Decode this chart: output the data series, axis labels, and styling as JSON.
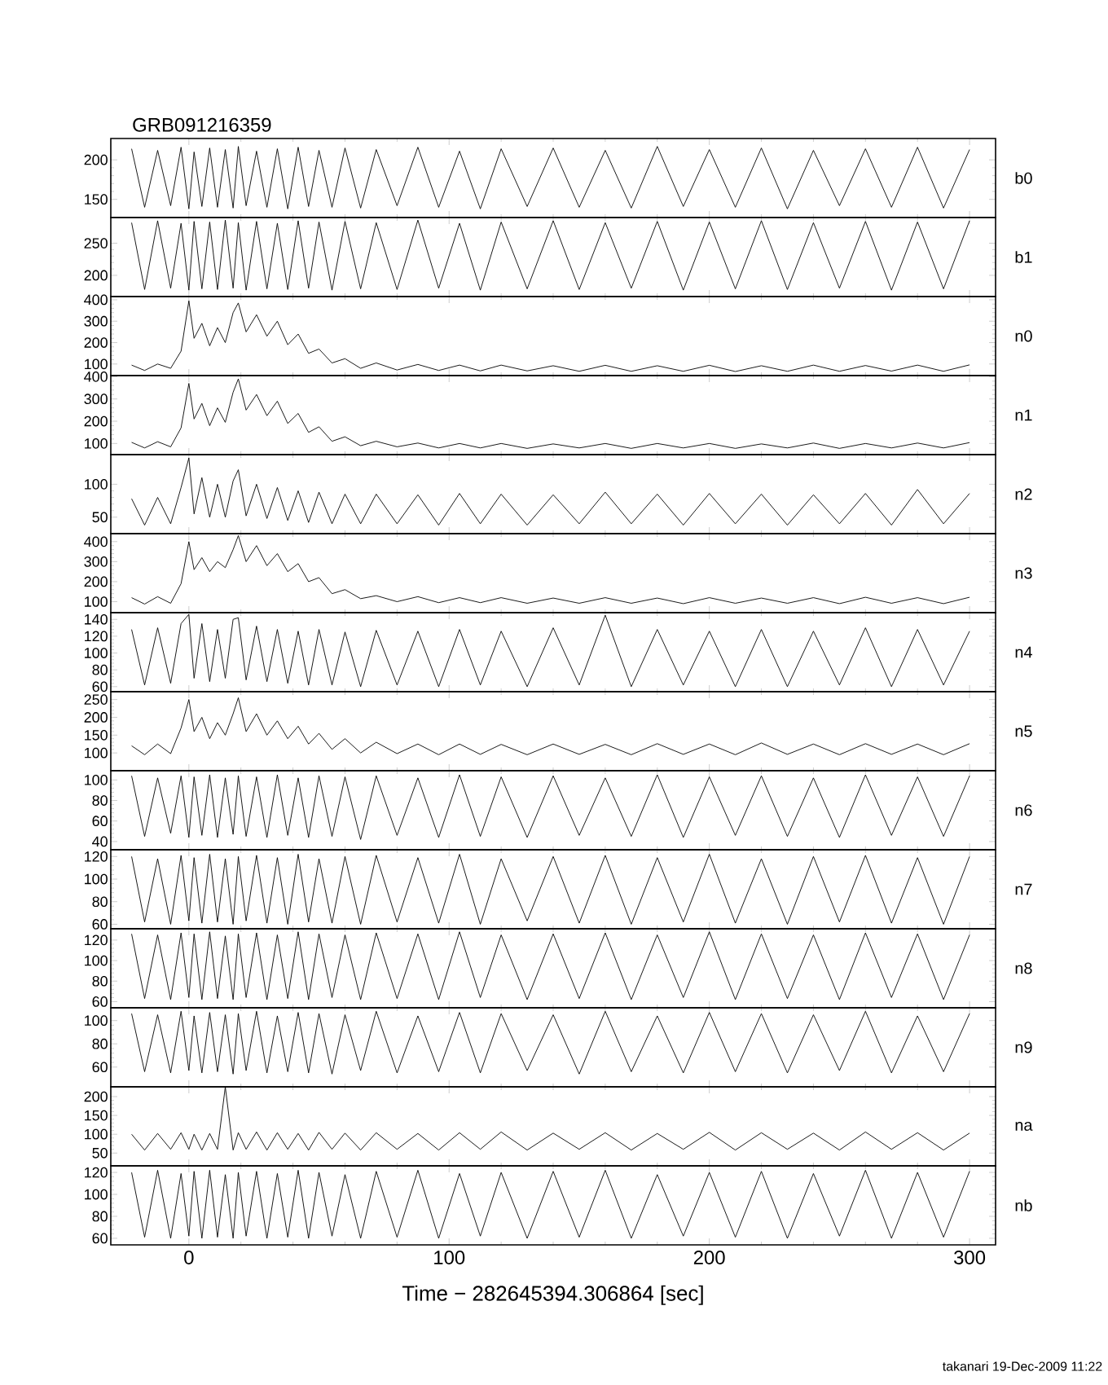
{
  "chart_data": [
    {
      "type": "line",
      "title": "GRB091216359",
      "tick_labels": "y",
      "xlim": [
        -30,
        310
      ],
      "xticks": [
        0,
        100,
        200,
        300
      ],
      "ylim": [
        127,
        227
      ],
      "yticks": [
        150,
        200
      ],
      "x": [
        -22,
        -17,
        -12,
        -7,
        -3,
        0,
        2,
        5,
        8,
        11,
        14,
        17,
        19,
        22,
        26,
        30,
        34,
        38,
        42,
        46,
        50,
        55,
        60,
        66,
        72,
        80,
        88,
        96,
        104,
        112,
        120,
        130,
        140,
        150,
        160,
        170,
        180,
        190,
        200,
        210,
        220,
        230,
        240,
        250,
        260,
        270,
        280,
        290,
        300
      ],
      "series": [
        {
          "name": "b0",
          "color": "#000000",
          "values": [
            214,
            140,
            212,
            142,
            216,
            138,
            210,
            141,
            215,
            140,
            213,
            139,
            217,
            142,
            211,
            140,
            214,
            138,
            216,
            141,
            212,
            140,
            215,
            139,
            213,
            142,
            216,
            140,
            211,
            138,
            214,
            141,
            215,
            140,
            212,
            139,
            217,
            141,
            213,
            140,
            215,
            138,
            212,
            142,
            214,
            140,
            216,
            139,
            213
          ]
        }
      ]
    },
    {
      "type": "line",
      "tick_labels": "y",
      "xlim": [
        -30,
        310
      ],
      "xticks": [
        0,
        100,
        200,
        300
      ],
      "ylim": [
        167,
        290
      ],
      "yticks": [
        200,
        250
      ],
      "x": [
        -22,
        -17,
        -12,
        -7,
        -3,
        0,
        2,
        5,
        8,
        11,
        14,
        17,
        19,
        22,
        26,
        30,
        34,
        38,
        42,
        46,
        50,
        55,
        60,
        66,
        72,
        80,
        88,
        96,
        104,
        112,
        120,
        130,
        140,
        150,
        160,
        170,
        180,
        190,
        200,
        210,
        220,
        230,
        240,
        250,
        260,
        270,
        280,
        290,
        300
      ],
      "series": [
        {
          "name": "b1",
          "color": "#000000",
          "values": [
            282,
            178,
            285,
            180,
            281,
            177,
            284,
            179,
            283,
            178,
            286,
            180,
            282,
            177,
            284,
            179,
            281,
            178,
            285,
            180,
            283,
            177,
            284,
            179,
            282,
            178,
            286,
            180,
            281,
            177,
            283,
            179,
            285,
            178,
            282,
            180,
            284,
            177,
            283,
            179,
            285,
            178,
            282,
            180,
            284,
            177,
            283,
            179,
            285
          ]
        }
      ]
    },
    {
      "type": "line",
      "tick_labels": "y",
      "xlim": [
        -30,
        310
      ],
      "xticks": [
        0,
        100,
        200,
        300
      ],
      "ylim": [
        46,
        415
      ],
      "yticks": [
        100,
        200,
        300,
        400
      ],
      "x": [
        -22,
        -17,
        -12,
        -7,
        -3,
        0,
        2,
        5,
        8,
        11,
        14,
        17,
        19,
        22,
        26,
        30,
        34,
        38,
        42,
        46,
        50,
        55,
        60,
        66,
        72,
        80,
        88,
        96,
        104,
        112,
        120,
        130,
        140,
        150,
        160,
        170,
        180,
        190,
        200,
        210,
        220,
        230,
        240,
        250,
        260,
        270,
        280,
        290,
        300
      ],
      "series": [
        {
          "name": "n0",
          "color": "#000000",
          "values": [
            95,
            70,
            100,
            80,
            160,
            395,
            220,
            290,
            185,
            270,
            200,
            340,
            385,
            250,
            330,
            230,
            300,
            190,
            240,
            150,
            170,
            105,
            125,
            80,
            105,
            72,
            98,
            70,
            95,
            68,
            95,
            68,
            92,
            66,
            94,
            66,
            92,
            66,
            94,
            65,
            92,
            66,
            95,
            66,
            93,
            67,
            95,
            66,
            96
          ]
        }
      ]
    },
    {
      "type": "line",
      "tick_labels": "y",
      "xlim": [
        -30,
        310
      ],
      "xticks": [
        0,
        100,
        200,
        300
      ],
      "ylim": [
        50,
        405
      ],
      "yticks": [
        100,
        200,
        300,
        400
      ],
      "x": [
        -22,
        -17,
        -12,
        -7,
        -3,
        0,
        2,
        5,
        8,
        11,
        14,
        17,
        19,
        22,
        26,
        30,
        34,
        38,
        42,
        46,
        50,
        55,
        60,
        66,
        72,
        80,
        88,
        96,
        104,
        112,
        120,
        130,
        140,
        150,
        160,
        170,
        180,
        190,
        200,
        210,
        220,
        230,
        240,
        250,
        260,
        270,
        280,
        290,
        300
      ],
      "series": [
        {
          "name": "n1",
          "color": "#000000",
          "values": [
            105,
            80,
            108,
            85,
            170,
            370,
            210,
            280,
            180,
            260,
            195,
            330,
            390,
            250,
            320,
            225,
            290,
            190,
            235,
            150,
            175,
            110,
            130,
            90,
            110,
            85,
            102,
            80,
            100,
            80,
            100,
            78,
            98,
            80,
            100,
            78,
            100,
            80,
            100,
            78,
            98,
            80,
            102,
            78,
            100,
            80,
            102,
            80,
            104
          ]
        }
      ]
    },
    {
      "type": "line",
      "tick_labels": "y",
      "xlim": [
        -30,
        310
      ],
      "xticks": [
        0,
        100,
        200,
        300
      ],
      "ylim": [
        25,
        145
      ],
      "yticks": [
        50,
        100
      ],
      "x": [
        -22,
        -17,
        -12,
        -7,
        -3,
        0,
        2,
        5,
        8,
        11,
        14,
        17,
        19,
        22,
        26,
        30,
        34,
        38,
        42,
        46,
        50,
        55,
        60,
        66,
        72,
        80,
        88,
        96,
        104,
        112,
        120,
        130,
        140,
        150,
        160,
        170,
        180,
        190,
        200,
        210,
        220,
        230,
        240,
        250,
        260,
        270,
        280,
        290,
        300
      ],
      "series": [
        {
          "name": "n2",
          "color": "#000000",
          "values": [
            78,
            38,
            80,
            40,
            95,
            140,
            55,
            110,
            50,
            100,
            50,
            105,
            122,
            52,
            100,
            48,
            95,
            45,
            90,
            42,
            88,
            40,
            85,
            40,
            85,
            40,
            84,
            38,
            86,
            40,
            85,
            38,
            84,
            40,
            88,
            40,
            85,
            38,
            86,
            40,
            85,
            38,
            84,
            40,
            86,
            38,
            92,
            40,
            86
          ]
        }
      ]
    },
    {
      "type": "line",
      "tick_labels": "y",
      "xlim": [
        -30,
        310
      ],
      "xticks": [
        0,
        100,
        200,
        300
      ],
      "ylim": [
        45,
        440
      ],
      "yticks": [
        100,
        200,
        300,
        400
      ],
      "x": [
        -22,
        -17,
        -12,
        -7,
        -3,
        0,
        2,
        5,
        8,
        11,
        14,
        17,
        19,
        22,
        26,
        30,
        34,
        38,
        42,
        46,
        50,
        55,
        60,
        66,
        72,
        80,
        88,
        96,
        104,
        112,
        120,
        130,
        140,
        150,
        160,
        170,
        180,
        190,
        200,
        210,
        220,
        230,
        240,
        250,
        260,
        270,
        280,
        290,
        300
      ],
      "series": [
        {
          "name": "n3",
          "color": "#000000",
          "values": [
            120,
            88,
            125,
            92,
            190,
            400,
            260,
            320,
            250,
            300,
            270,
            360,
            430,
            300,
            380,
            280,
            340,
            250,
            290,
            200,
            220,
            140,
            160,
            115,
            130,
            100,
            125,
            95,
            120,
            95,
            120,
            92,
            118,
            92,
            120,
            92,
            118,
            90,
            120,
            92,
            118,
            92,
            120,
            90,
            122,
            92,
            120,
            90,
            122
          ]
        }
      ]
    },
    {
      "type": "line",
      "tick_labels": "y",
      "xlim": [
        -30,
        310
      ],
      "xticks": [
        0,
        100,
        200,
        300
      ],
      "ylim": [
        54,
        148
      ],
      "yticks": [
        60,
        80,
        100,
        120,
        140
      ],
      "x": [
        -22,
        -17,
        -12,
        -7,
        -3,
        0,
        2,
        5,
        8,
        11,
        14,
        17,
        19,
        22,
        26,
        30,
        34,
        38,
        42,
        46,
        50,
        55,
        60,
        66,
        72,
        80,
        88,
        96,
        104,
        112,
        120,
        130,
        140,
        150,
        160,
        170,
        180,
        190,
        200,
        210,
        220,
        230,
        240,
        250,
        260,
        270,
        280,
        290,
        300
      ],
      "series": [
        {
          "name": "n4",
          "color": "#000000",
          "values": [
            128,
            62,
            130,
            64,
            135,
            146,
            70,
            135,
            66,
            128,
            70,
            140,
            142,
            68,
            132,
            66,
            128,
            64,
            126,
            62,
            128,
            62,
            125,
            60,
            127,
            62,
            126,
            60,
            128,
            62,
            126,
            60,
            130,
            62,
            145,
            60,
            128,
            62,
            126,
            60,
            128,
            60,
            126,
            62,
            130,
            60,
            128,
            62,
            126
          ]
        }
      ]
    },
    {
      "type": "line",
      "tick_labels": "y",
      "xlim": [
        -30,
        310
      ],
      "xticks": [
        0,
        100,
        200,
        300
      ],
      "ylim": [
        50,
        272
      ],
      "yticks": [
        100,
        150,
        200,
        250
      ],
      "x": [
        -22,
        -17,
        -12,
        -7,
        -3,
        0,
        2,
        5,
        8,
        11,
        14,
        17,
        19,
        22,
        26,
        30,
        34,
        38,
        42,
        46,
        50,
        55,
        60,
        66,
        72,
        80,
        88,
        96,
        104,
        112,
        120,
        130,
        140,
        150,
        160,
        170,
        180,
        190,
        200,
        210,
        220,
        230,
        240,
        250,
        260,
        270,
        280,
        290,
        300
      ],
      "series": [
        {
          "name": "n5",
          "color": "#000000",
          "values": [
            120,
            95,
            125,
            98,
            170,
            250,
            160,
            200,
            140,
            185,
            150,
            210,
            255,
            160,
            210,
            150,
            190,
            140,
            175,
            125,
            155,
            110,
            140,
            100,
            130,
            98,
            125,
            95,
            125,
            96,
            124,
            95,
            125,
            96,
            124,
            95,
            126,
            96,
            125,
            95,
            128,
            96,
            125,
            95,
            126,
            96,
            125,
            95,
            126
          ]
        }
      ]
    },
    {
      "type": "line",
      "tick_labels": "y",
      "xlim": [
        -30,
        310
      ],
      "xticks": [
        0,
        100,
        200,
        300
      ],
      "ylim": [
        32,
        109
      ],
      "yticks": [
        40,
        60,
        80,
        100
      ],
      "x": [
        -22,
        -17,
        -12,
        -7,
        -3,
        0,
        2,
        5,
        8,
        11,
        14,
        17,
        19,
        22,
        26,
        30,
        34,
        38,
        42,
        46,
        50,
        55,
        60,
        66,
        72,
        80,
        88,
        96,
        104,
        112,
        120,
        130,
        140,
        150,
        160,
        170,
        180,
        190,
        200,
        210,
        220,
        230,
        240,
        250,
        260,
        270,
        280,
        290,
        300
      ],
      "series": [
        {
          "name": "n6",
          "color": "#000000",
          "values": [
            104,
            45,
            102,
            48,
            104,
            44,
            103,
            46,
            105,
            44,
            102,
            47,
            104,
            45,
            103,
            44,
            105,
            46,
            102,
            44,
            104,
            45,
            103,
            42,
            104,
            46,
            102,
            44,
            105,
            45,
            103,
            44,
            104,
            46,
            102,
            45,
            105,
            44,
            103,
            46,
            104,
            45,
            102,
            44,
            105,
            46,
            103,
            45,
            104
          ]
        }
      ]
    },
    {
      "type": "line",
      "tick_labels": "y",
      "xlim": [
        -30,
        310
      ],
      "xticks": [
        0,
        100,
        200,
        300
      ],
      "ylim": [
        56,
        126
      ],
      "yticks": [
        60,
        80,
        100,
        120
      ],
      "x": [
        -22,
        -17,
        -12,
        -7,
        -3,
        0,
        2,
        5,
        8,
        11,
        14,
        17,
        19,
        22,
        26,
        30,
        34,
        38,
        42,
        46,
        50,
        55,
        60,
        66,
        72,
        80,
        88,
        96,
        104,
        112,
        120,
        130,
        140,
        150,
        160,
        170,
        180,
        190,
        200,
        210,
        220,
        230,
        240,
        250,
        260,
        270,
        280,
        290,
        300
      ],
      "series": [
        {
          "name": "n7",
          "color": "#000000",
          "values": [
            120,
            62,
            118,
            60,
            121,
            63,
            119,
            61,
            122,
            62,
            118,
            60,
            120,
            63,
            121,
            61,
            119,
            60,
            122,
            62,
            118,
            61,
            120,
            60,
            121,
            62,
            119,
            61,
            122,
            60,
            118,
            63,
            120,
            61,
            121,
            60,
            119,
            62,
            122,
            61,
            118,
            60,
            120,
            62,
            121,
            61,
            119,
            60,
            120
          ]
        }
      ]
    },
    {
      "type": "line",
      "tick_labels": "y",
      "xlim": [
        -30,
        310
      ],
      "xticks": [
        0,
        100,
        200,
        300
      ],
      "ylim": [
        54,
        131
      ],
      "yticks": [
        60,
        80,
        100,
        120
      ],
      "x": [
        -22,
        -17,
        -12,
        -7,
        -3,
        0,
        2,
        5,
        8,
        11,
        14,
        17,
        19,
        22,
        26,
        30,
        34,
        38,
        42,
        46,
        50,
        55,
        60,
        66,
        72,
        80,
        88,
        96,
        104,
        112,
        120,
        130,
        140,
        150,
        160,
        170,
        180,
        190,
        200,
        210,
        220,
        230,
        240,
        250,
        260,
        270,
        280,
        290,
        300
      ],
      "series": [
        {
          "name": "n8",
          "color": "#000000",
          "values": [
            126,
            63,
            125,
            62,
            127,
            64,
            126,
            62,
            128,
            63,
            124,
            62,
            126,
            64,
            127,
            62,
            125,
            63,
            128,
            62,
            126,
            64,
            125,
            62,
            127,
            63,
            126,
            62,
            128,
            64,
            125,
            62,
            126,
            63,
            127,
            62,
            125,
            64,
            128,
            62,
            126,
            63,
            125,
            62,
            127,
            64,
            126,
            62,
            125
          ]
        }
      ]
    },
    {
      "type": "line",
      "tick_labels": "y",
      "xlim": [
        -30,
        310
      ],
      "xticks": [
        0,
        100,
        200,
        300
      ],
      "ylim": [
        43,
        111
      ],
      "yticks": [
        60,
        80,
        100
      ],
      "x": [
        -22,
        -17,
        -12,
        -7,
        -3,
        0,
        2,
        5,
        8,
        11,
        14,
        17,
        19,
        22,
        26,
        30,
        34,
        38,
        42,
        46,
        50,
        55,
        60,
        66,
        72,
        80,
        88,
        96,
        104,
        112,
        120,
        130,
        140,
        150,
        160,
        170,
        180,
        190,
        200,
        210,
        220,
        230,
        240,
        250,
        260,
        270,
        280,
        290,
        300
      ],
      "series": [
        {
          "name": "n9",
          "color": "#000000",
          "values": [
            106,
            56,
            105,
            55,
            108,
            57,
            104,
            55,
            107,
            56,
            105,
            54,
            106,
            57,
            108,
            55,
            104,
            56,
            107,
            55,
            106,
            54,
            105,
            57,
            108,
            55,
            104,
            56,
            107,
            55,
            106,
            57,
            105,
            54,
            108,
            56,
            104,
            55,
            107,
            56,
            106,
            55,
            105,
            57,
            108,
            55,
            104,
            56,
            106
          ]
        }
      ]
    },
    {
      "type": "line",
      "tick_labels": "y",
      "xlim": [
        -30,
        310
      ],
      "xticks": [
        0,
        100,
        200,
        300
      ],
      "ylim": [
        16,
        226
      ],
      "yticks": [
        50,
        100,
        150,
        200
      ],
      "x": [
        -22,
        -17,
        -12,
        -7,
        -3,
        0,
        2,
        5,
        8,
        11,
        14,
        17,
        19,
        22,
        26,
        30,
        34,
        38,
        42,
        46,
        50,
        55,
        60,
        66,
        72,
        80,
        88,
        96,
        104,
        112,
        120,
        130,
        140,
        150,
        160,
        170,
        180,
        190,
        200,
        210,
        220,
        230,
        240,
        250,
        260,
        270,
        280,
        290,
        300
      ],
      "series": [
        {
          "name": "na",
          "color": "#000000",
          "values": [
            100,
            58,
            102,
            60,
            104,
            60,
            100,
            58,
            102,
            60,
            226,
            58,
            104,
            60,
            106,
            58,
            104,
            60,
            102,
            58,
            105,
            60,
            103,
            58,
            104,
            60,
            102,
            58,
            104,
            60,
            106,
            58,
            103,
            60,
            104,
            58,
            102,
            60,
            105,
            58,
            104,
            60,
            103,
            58,
            106,
            60,
            104,
            58,
            103
          ]
        }
      ]
    },
    {
      "type": "line",
      "xlabel": "Time − 282645394.306864 [sec]",
      "annotations": [
        "takanari 19-Dec-2009 11:22"
      ],
      "xlim": [
        -30,
        310
      ],
      "xticks": [
        0,
        100,
        200,
        300
      ],
      "ylim": [
        54,
        126
      ],
      "yticks": [
        60,
        80,
        100,
        120
      ],
      "x": [
        -22,
        -17,
        -12,
        -7,
        -3,
        0,
        2,
        5,
        8,
        11,
        14,
        17,
        19,
        22,
        26,
        30,
        34,
        38,
        42,
        46,
        50,
        55,
        60,
        66,
        72,
        80,
        88,
        96,
        104,
        112,
        120,
        130,
        140,
        150,
        160,
        170,
        180,
        190,
        200,
        210,
        220,
        230,
        240,
        250,
        260,
        270,
        280,
        290,
        300
      ],
      "series": [
        {
          "name": "nb",
          "color": "#000000",
          "values": [
            120,
            61,
            122,
            60,
            119,
            62,
            121,
            60,
            122,
            61,
            118,
            60,
            120,
            62,
            121,
            60,
            119,
            61,
            122,
            60,
            120,
            62,
            118,
            60,
            121,
            61,
            122,
            60,
            119,
            62,
            120,
            60,
            121,
            61,
            122,
            60,
            118,
            62,
            120,
            61,
            121,
            60,
            119,
            62,
            122,
            60,
            120,
            61,
            121
          ]
        }
      ]
    }
  ]
}
